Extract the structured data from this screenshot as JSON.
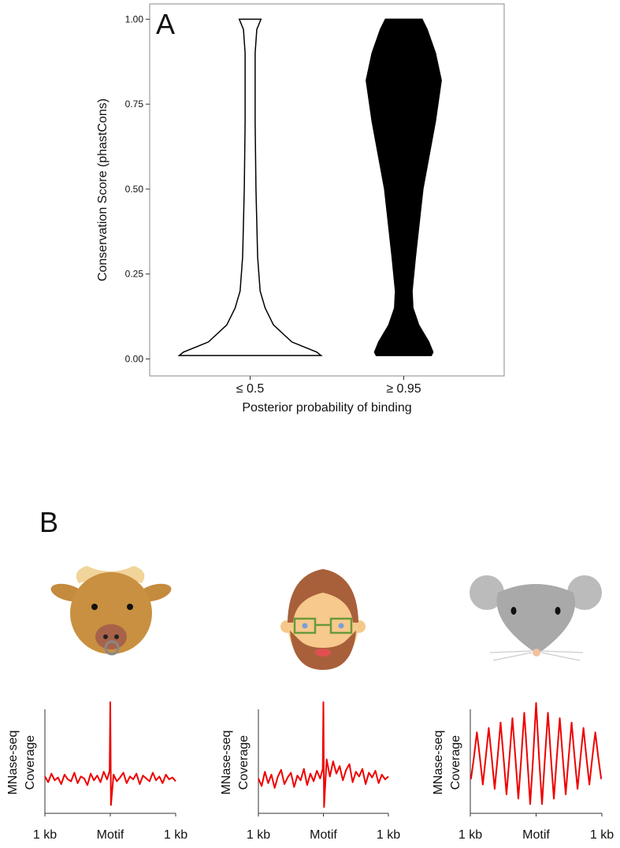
{
  "chart_data": [
    {
      "type": "violin",
      "panel_label": "A",
      "ylabel": "Conservation Score (phastCons)",
      "xlabel": "Posterior probability of binding",
      "categories": [
        "≤ 0.5",
        "≥ 0.95"
      ],
      "ylim": [
        -0.05,
        1.045
      ],
      "yticks": [
        {
          "value": 0,
          "label": "0.00"
        },
        {
          "value": 0.25,
          "label": "0.25"
        },
        {
          "value": 0.5,
          "label": "0.50"
        },
        {
          "value": 0.75,
          "label": "0.75"
        },
        {
          "value": 1,
          "label": "1.00"
        }
      ],
      "violins": [
        {
          "color": "#ffffff",
          "edgecolor": "#000000",
          "y": [
            0.01,
            0.02,
            0.05,
            0.1,
            0.15,
            0.2,
            0.3,
            0.5,
            0.7,
            0.9,
            0.97,
            1.0
          ],
          "density": [
            85,
            80,
            50,
            28,
            18,
            12,
            9,
            7,
            6,
            6,
            8,
            13
          ]
        },
        {
          "color": "#000000",
          "edgecolor": "#000000",
          "y": [
            0.01,
            0.02,
            0.05,
            0.1,
            0.15,
            0.2,
            0.3,
            0.5,
            0.7,
            0.82,
            0.9,
            0.97,
            1.0
          ],
          "density": [
            33,
            35,
            30,
            18,
            11,
            10,
            14,
            23,
            38,
            45,
            38,
            28,
            22
          ]
        }
      ]
    },
    {
      "type": "line",
      "panel_label": "B",
      "ylabel": [
        "MNase-seq",
        "Coverage"
      ],
      "color": "#ee0000",
      "xlim": [
        -1000,
        1000
      ],
      "ylim": [
        -0.15,
        1.05
      ],
      "xticks": [
        {
          "value": -1000,
          "label": "1 kb"
        },
        {
          "value": 0,
          "label": "Motif"
        },
        {
          "value": 1000,
          "label": "1 kb"
        }
      ],
      "x": [
        -1000,
        -950,
        -900,
        -850,
        -800,
        -750,
        -700,
        -650,
        -600,
        -550,
        -500,
        -450,
        -400,
        -350,
        -300,
        -250,
        -200,
        -150,
        -100,
        -50,
        -10,
        0,
        10,
        50,
        100,
        150,
        200,
        250,
        300,
        350,
        400,
        450,
        500,
        550,
        600,
        650,
        700,
        750,
        800,
        850,
        900,
        950,
        1000
      ],
      "values": [
        0.22,
        0.16,
        0.25,
        0.18,
        0.21,
        0.14,
        0.24,
        0.19,
        0.17,
        0.26,
        0.15,
        0.22,
        0.2,
        0.13,
        0.25,
        0.18,
        0.23,
        0.16,
        0.27,
        0.19,
        0.28,
        1.0,
        -0.08,
        0.24,
        0.17,
        0.21,
        0.26,
        0.15,
        0.22,
        0.19,
        0.25,
        0.14,
        0.23,
        0.2,
        0.17,
        0.26,
        0.18,
        0.22,
        0.15,
        0.24,
        0.19,
        0.21,
        0.17
      ]
    },
    {
      "type": "line",
      "ylabel": [
        "MNase-seq",
        "Coverage"
      ],
      "color": "#ee0000",
      "xlim": [
        -1000,
        1000
      ],
      "ylim": [
        -0.15,
        1.05
      ],
      "xticks": [
        {
          "value": -1000,
          "label": "1 kb"
        },
        {
          "value": 0,
          "label": "Motif"
        },
        {
          "value": 1000,
          "label": "1 kb"
        }
      ],
      "x": [
        -1000,
        -950,
        -900,
        -850,
        -800,
        -750,
        -700,
        -650,
        -600,
        -550,
        -500,
        -450,
        -400,
        -350,
        -300,
        -250,
        -200,
        -150,
        -100,
        -50,
        -10,
        0,
        10,
        50,
        100,
        150,
        200,
        250,
        300,
        350,
        400,
        450,
        500,
        550,
        600,
        650,
        700,
        750,
        800,
        850,
        900,
        950,
        1000
      ],
      "values": [
        0.2,
        0.12,
        0.27,
        0.15,
        0.24,
        0.1,
        0.22,
        0.29,
        0.14,
        0.21,
        0.26,
        0.11,
        0.23,
        0.18,
        0.3,
        0.13,
        0.25,
        0.17,
        0.28,
        0.2,
        0.3,
        1.0,
        -0.1,
        0.4,
        0.22,
        0.38,
        0.25,
        0.33,
        0.18,
        0.29,
        0.35,
        0.16,
        0.27,
        0.22,
        0.3,
        0.14,
        0.26,
        0.21,
        0.28,
        0.15,
        0.24,
        0.19,
        0.22
      ]
    },
    {
      "type": "line",
      "ylabel": [
        "MNase-seq",
        "Coverage"
      ],
      "color": "#ee0000",
      "xlim": [
        -1000,
        1000
      ],
      "ylim": [
        -0.05,
        1.0
      ],
      "xticks": [
        {
          "value": -1000,
          "label": "1 kb"
        },
        {
          "value": 0,
          "label": "Motif"
        },
        {
          "value": 1000,
          "label": "1 kb"
        }
      ],
      "x": [
        -990,
        -945,
        -900,
        -855,
        -810,
        -765,
        -720,
        -675,
        -630,
        -585,
        -540,
        -495,
        -450,
        -405,
        -360,
        -315,
        -270,
        -225,
        -180,
        -135,
        -90,
        -45,
        0,
        45,
        90,
        135,
        180,
        225,
        270,
        315,
        360,
        405,
        450,
        495,
        540,
        585,
        630,
        675,
        720,
        765,
        810,
        855,
        900,
        945,
        990
      ],
      "values": [
        0.25,
        0.45,
        0.68,
        0.45,
        0.2,
        0.45,
        0.72,
        0.45,
        0.16,
        0.45,
        0.77,
        0.45,
        0.11,
        0.45,
        0.81,
        0.45,
        0.07,
        0.45,
        0.86,
        0.45,
        0.02,
        0.45,
        0.95,
        0.45,
        0.02,
        0.45,
        0.86,
        0.45,
        0.07,
        0.45,
        0.81,
        0.45,
        0.11,
        0.45,
        0.77,
        0.45,
        0.16,
        0.45,
        0.72,
        0.45,
        0.2,
        0.45,
        0.68,
        0.45,
        0.25
      ]
    }
  ]
}
